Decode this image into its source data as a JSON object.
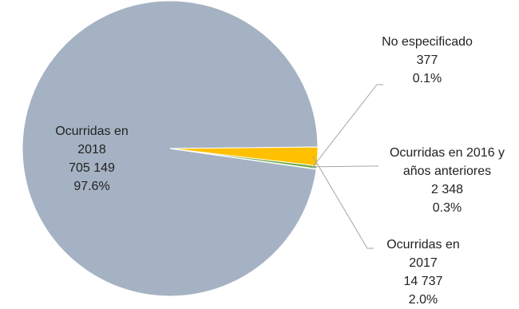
{
  "chart_data": {
    "type": "pie",
    "title": "",
    "slices": [
      {
        "label_lines": [
          "Ocurridas en",
          "2018"
        ],
        "value": 705149,
        "value_text": "705 149",
        "percent_text": "97.6%",
        "color": "#a5b2c3"
      },
      {
        "label_lines": [
          "Ocurridas en",
          "2017"
        ],
        "value": 14737,
        "value_text": "14 737",
        "percent_text": "2.0%",
        "color": "#ffc000"
      },
      {
        "label_lines": [
          "Ocurridas en 2016 y",
          "años anteriores"
        ],
        "value": 2348,
        "value_text": "2 348",
        "percent_text": "0.3%",
        "color": "#70ad47"
      },
      {
        "label_lines": [
          "No especificado"
        ],
        "value": 377,
        "value_text": "377",
        "percent_text": "0.1%",
        "color": "#000000"
      }
    ],
    "leader_line_color": "#a6a6a6"
  }
}
